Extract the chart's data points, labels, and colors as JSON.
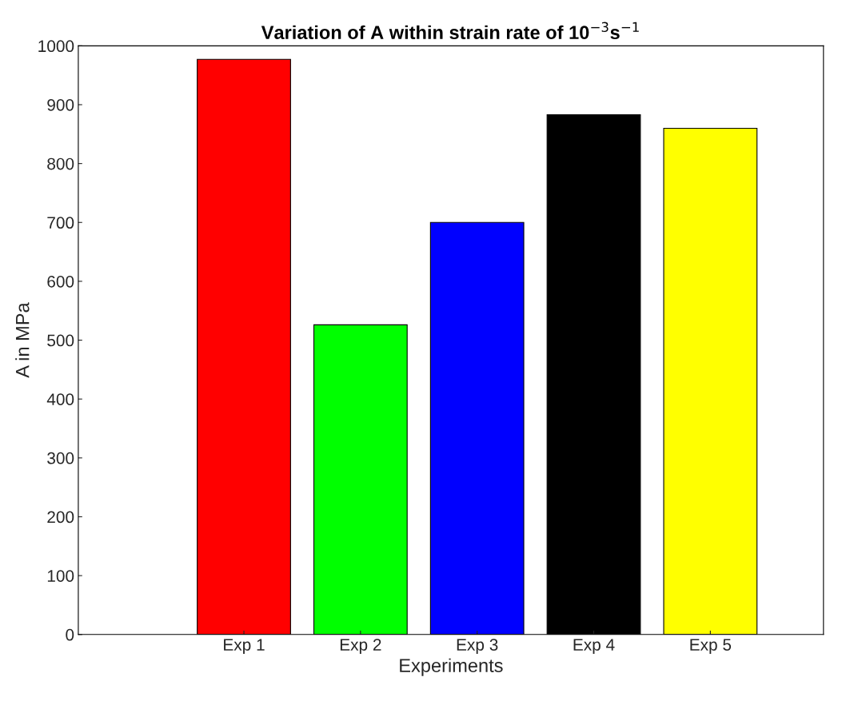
{
  "chart_data": {
    "type": "bar",
    "title": "Variation of A within strain rate of 10$^{−3}$s$^{−1}$",
    "xlabel": "Experiments",
    "ylabel": "A in MPa",
    "categories": [
      "Exp 1",
      "Exp 2",
      "Exp 3",
      "Exp 4",
      "Exp 5"
    ],
    "values": [
      977,
      526,
      700,
      883,
      860
    ],
    "colors": [
      "#ff0000",
      "#00ff00",
      "#0000ff",
      "#000000",
      "#ffff00"
    ],
    "ylim": [
      0,
      1000
    ],
    "yticks": [
      0,
      100,
      200,
      300,
      400,
      500,
      600,
      700,
      800,
      900,
      1000
    ],
    "grid": false,
    "legend": false
  }
}
